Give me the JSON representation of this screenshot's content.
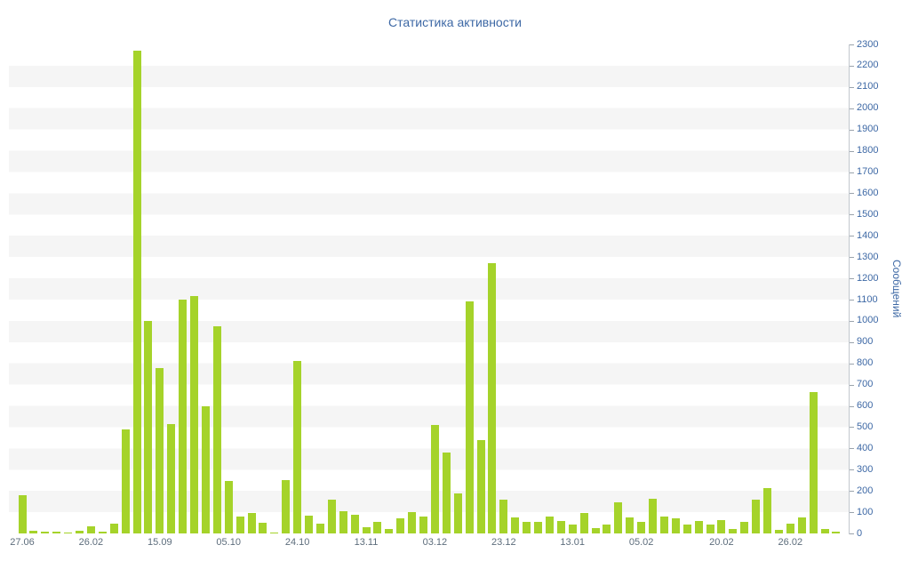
{
  "colors": {
    "bar": "#a5d32a",
    "stripe": "#f5f5f5",
    "heading": "#3d68a5",
    "xlabel": "#5d6d7c",
    "axis": "#c2c8ce",
    "tickc": "#9aa3ac"
  },
  "chart_data": {
    "type": "bar",
    "title": "Статистика активности",
    "ylabel": "Сообщений",
    "xlabel": "",
    "ylim": [
      0,
      2300
    ],
    "y_tick_step": 100,
    "grid": "striped-horizontal-bands",
    "legend": "none",
    "y_ticks": [
      0,
      100,
      200,
      300,
      400,
      500,
      600,
      700,
      800,
      900,
      1000,
      1100,
      1200,
      1300,
      1400,
      1500,
      1600,
      1700,
      1800,
      1900,
      2000,
      2100,
      2200,
      2300
    ],
    "values": [
      180,
      12,
      8,
      10,
      5,
      12,
      32,
      8,
      48,
      490,
      2270,
      1000,
      780,
      515,
      1100,
      1115,
      600,
      975,
      245,
      80,
      95,
      50,
      5,
      250,
      810,
      85,
      45,
      160,
      105,
      90,
      30,
      55,
      20,
      70,
      100,
      80,
      510,
      380,
      190,
      1090,
      440,
      1270,
      160,
      75,
      55,
      55,
      80,
      60,
      40,
      95,
      25,
      40,
      145,
      75,
      55,
      165,
      80,
      70,
      40,
      60,
      40,
      65,
      20,
      55,
      160,
      215,
      15,
      45,
      75,
      665,
      20,
      10
    ],
    "x_ticks": [
      {
        "index": 0,
        "label": "27.06"
      },
      {
        "index": 6,
        "label": "26.02"
      },
      {
        "index": 12,
        "label": "15.09"
      },
      {
        "index": 18,
        "label": "05.10"
      },
      {
        "index": 24,
        "label": "24.10"
      },
      {
        "index": 30,
        "label": "13.11"
      },
      {
        "index": 36,
        "label": "03.12"
      },
      {
        "index": 42,
        "label": "23.12"
      },
      {
        "index": 48,
        "label": "13.01"
      },
      {
        "index": 54,
        "label": "05.02"
      },
      {
        "index": 61,
        "label": "20.02"
      },
      {
        "index": 67,
        "label": "26.02"
      }
    ]
  }
}
